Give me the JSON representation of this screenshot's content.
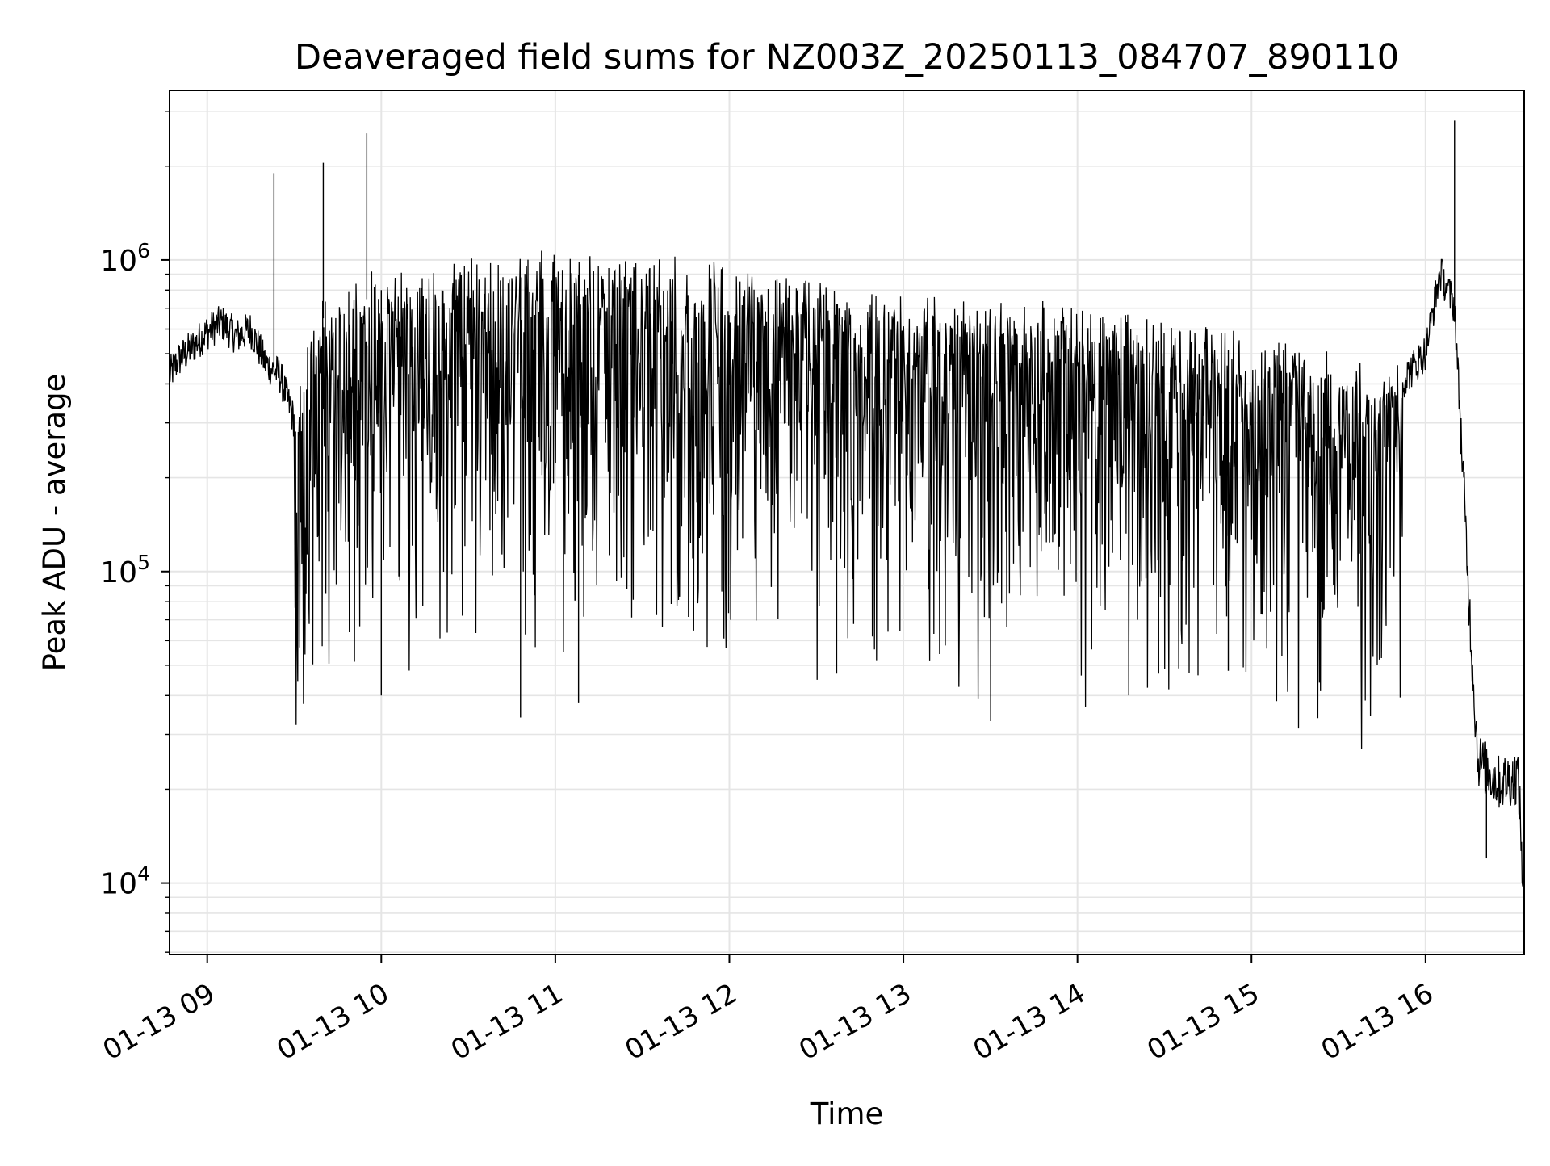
{
  "chart_data": {
    "type": "line",
    "title": "Deaveraged field sums for NZ003Z_20250113_084707_890110",
    "xlabel": "Time",
    "ylabel": "Peak ADU - average",
    "yscale": "log",
    "grid": true,
    "line_color": "#000000",
    "grid_color": "#e5e5e5",
    "xlim": [
      "2025-01-13 08:47",
      "2025-01-13 16:34"
    ],
    "ylim": [
      5900,
      3500000
    ],
    "x_ticks": [
      {
        "value": "2025-01-13 09:00",
        "label": "01-13 09"
      },
      {
        "value": "2025-01-13 10:00",
        "label": "01-13 10"
      },
      {
        "value": "2025-01-13 11:00",
        "label": "01-13 11"
      },
      {
        "value": "2025-01-13 12:00",
        "label": "01-13 12"
      },
      {
        "value": "2025-01-13 13:00",
        "label": "01-13 13"
      },
      {
        "value": "2025-01-13 14:00",
        "label": "01-13 14"
      },
      {
        "value": "2025-01-13 15:00",
        "label": "01-13 15"
      },
      {
        "value": "2025-01-13 16:00",
        "label": "01-13 16"
      }
    ],
    "y_ticks": [
      {
        "value": 10000,
        "base": "10",
        "exp": "4"
      },
      {
        "value": 100000,
        "base": "10",
        "exp": "5"
      },
      {
        "value": 1000000,
        "base": "10",
        "exp": "6"
      }
    ],
    "series": [
      {
        "points": [
          [
            "2025-01-13 08:47",
            420000
          ],
          [
            "2025-01-13 08:50",
            470000
          ],
          [
            "2025-01-13 08:55",
            520000
          ],
          [
            "2025-01-13 09:00",
            580000
          ],
          [
            "2025-01-13 09:05",
            620000
          ],
          [
            "2025-01-13 09:10",
            560000
          ],
          [
            "2025-01-13 09:15",
            590000
          ],
          [
            "2025-01-13 09:20",
            460000
          ],
          [
            "2025-01-13 09:25",
            420000
          ],
          [
            "2025-01-13 09:30",
            300000
          ],
          [
            "2025-01-13 09:40",
            650000
          ],
          [
            "2025-01-13 09:50",
            700000
          ],
          [
            "2025-01-13 10:00",
            800000
          ],
          [
            "2025-01-13 11:00",
            900000
          ],
          [
            "2025-01-13 12:00",
            850000
          ],
          [
            "2025-01-13 13:00",
            650000
          ],
          [
            "2025-01-13 14:00",
            600000
          ],
          [
            "2025-01-13 15:00",
            500000
          ],
          [
            "2025-01-13 15:50",
            380000
          ],
          [
            "2025-01-13 16:00",
            500000
          ],
          [
            "2025-01-13 16:05",
            900000
          ],
          [
            "2025-01-13 16:10",
            700000
          ],
          [
            "2025-01-13 16:13",
            200000
          ],
          [
            "2025-01-13 16:15",
            80000
          ],
          [
            "2025-01-13 16:18",
            25000
          ],
          [
            "2025-01-13 16:25",
            21000
          ],
          [
            "2025-01-13 16:32",
            22000
          ],
          [
            "2025-01-13 16:34",
            8200
          ]
        ],
        "peaks": [
          [
            "2025-01-13 09:23",
            1900000
          ],
          [
            "2025-01-13 09:40",
            2050000
          ],
          [
            "2025-01-13 09:55",
            2550000
          ],
          [
            "2025-01-13 16:10",
            2800000
          ]
        ],
        "troughs": [
          [
            "2025-01-13 10:00",
            40000
          ],
          [
            "2025-01-13 10:48",
            34000
          ],
          [
            "2025-01-13 11:08",
            38000
          ],
          [
            "2025-01-13 12:37",
            47000
          ],
          [
            "2025-01-13 14:28",
            47000
          ],
          [
            "2025-01-13 14:52",
            48000
          ],
          [
            "2025-01-13 16:21",
            12000
          ]
        ]
      }
    ]
  }
}
